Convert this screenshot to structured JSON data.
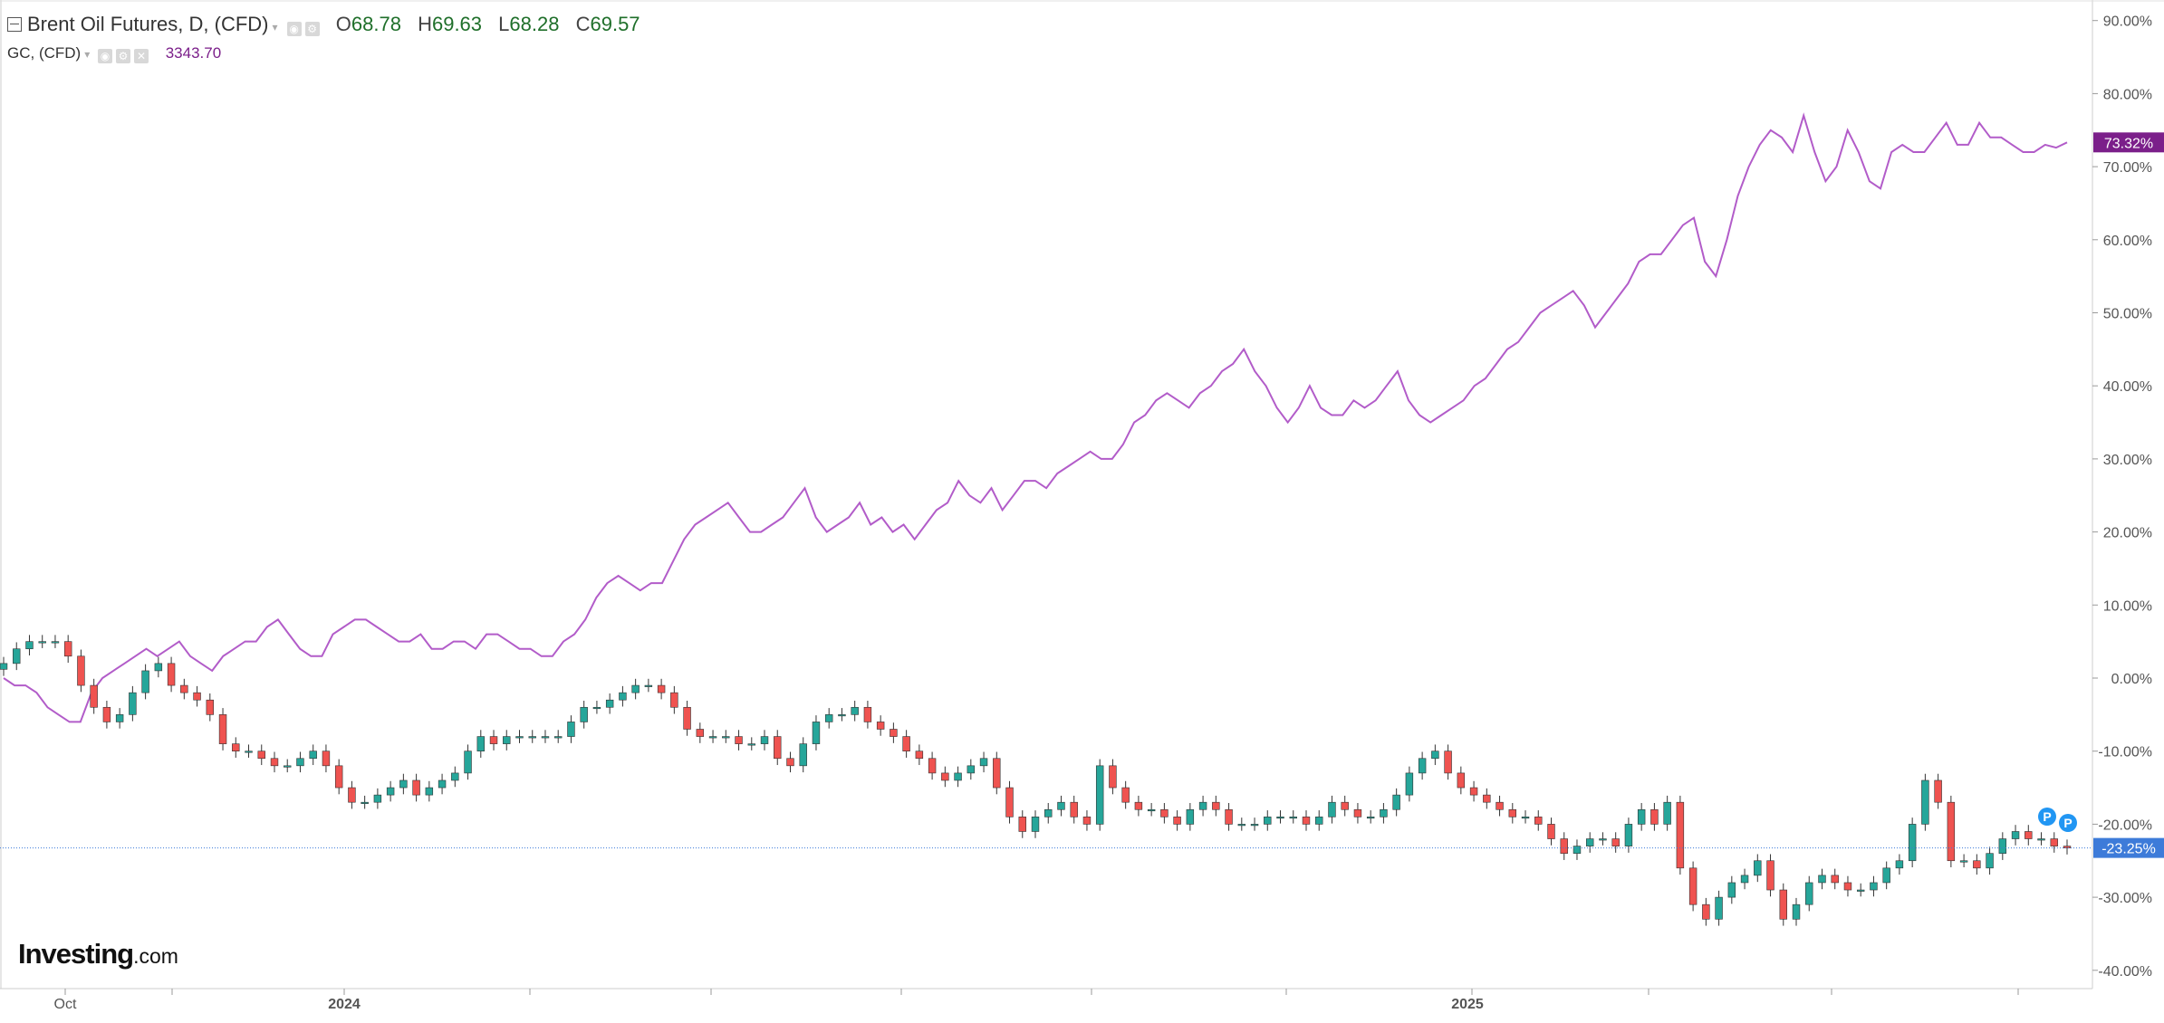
{
  "legend": {
    "title": "Brent Oil Futures, D, (CFD)",
    "o_label": "O",
    "o_value": "68.78",
    "h_label": "H",
    "h_value": "69.63",
    "l_label": "L",
    "l_value": "68.28",
    "c_label": "C",
    "c_value": "69.57",
    "compare_symbol": "GC, (CFD)",
    "compare_value": "3343.70"
  },
  "watermark": {
    "brand": "Investing",
    "suffix": ".com"
  },
  "colors": {
    "up": "#26a69a",
    "down": "#ef5350",
    "gold_line": "#b25cc9",
    "gold_badge": "#7b1f8a",
    "brent_badge": "#3d7bd9",
    "axis": "#cccccc",
    "text": "#555555"
  },
  "chart_data": {
    "type": "line",
    "title": "Brent Oil Futures, D, (CFD)",
    "xlabel": "",
    "ylabel": "",
    "y_format": "percent",
    "ylim": [
      -40,
      90
    ],
    "y_ticks": [
      "90.00%",
      "80.00%",
      "70.00%",
      "60.00%",
      "50.00%",
      "40.00%",
      "30.00%",
      "20.00%",
      "10.00%",
      "0.00%",
      "-10.00%",
      "-20.00%",
      "-30.00%",
      "-40.00%"
    ],
    "x_ticks": [
      "Oct",
      "2024",
      "2025"
    ],
    "grid": false,
    "series": [
      {
        "name": "GC, (CFD)",
        "style": "line",
        "last_label": "73.32%",
        "last_value": 73.32,
        "values": [
          0,
          -1,
          -1,
          -2,
          -4,
          -5,
          -6,
          -6,
          -2,
          0,
          1,
          2,
          3,
          4,
          3,
          4,
          5,
          3,
          2,
          1,
          3,
          4,
          5,
          5,
          7,
          8,
          6,
          4,
          3,
          3,
          6,
          7,
          8,
          8,
          7,
          6,
          5,
          5,
          6,
          4,
          4,
          5,
          5,
          4,
          6,
          6,
          5,
          4,
          4,
          3,
          3,
          5,
          6,
          8,
          11,
          13,
          14,
          13,
          12,
          13,
          13,
          16,
          19,
          21,
          22,
          23,
          24,
          22,
          20,
          20,
          21,
          22,
          24,
          26,
          22,
          20,
          21,
          22,
          24,
          21,
          22,
          20,
          21,
          19,
          21,
          23,
          24,
          27,
          25,
          24,
          26,
          23,
          25,
          27,
          27,
          26,
          28,
          29,
          30,
          31,
          30,
          30,
          32,
          35,
          36,
          38,
          39,
          38,
          37,
          39,
          40,
          42,
          43,
          45,
          42,
          40,
          37,
          35,
          37,
          40,
          37,
          36,
          36,
          38,
          37,
          38,
          40,
          42,
          38,
          36,
          35,
          36,
          37,
          38,
          40,
          41,
          43,
          45,
          46,
          48,
          50,
          51,
          52,
          53,
          51,
          48,
          50,
          52,
          54,
          57,
          58,
          58,
          60,
          62,
          63,
          57,
          55,
          60,
          66,
          70,
          73,
          75,
          74,
          72,
          77,
          72,
          68,
          70,
          75,
          72,
          68,
          67,
          72,
          73,
          72,
          72,
          74,
          76,
          73,
          73,
          76,
          74,
          74,
          73,
          72,
          72,
          73,
          72.6,
          73.32
        ]
      },
      {
        "name": "Brent Oil Futures, D, (CFD)",
        "style": "candlestick",
        "last_label": "-23.25%",
        "last_value": -23.25,
        "closes": [
          2,
          4,
          5,
          5,
          5,
          3,
          -1,
          -4,
          -6,
          -5,
          -2,
          1,
          2,
          -1,
          -2,
          -3,
          -5,
          -9,
          -10,
          -10,
          -11,
          -12,
          -12,
          -11,
          -10,
          -12,
          -15,
          -17,
          -17,
          -16,
          -15,
          -14,
          -16,
          -15,
          -14,
          -13,
          -10,
          -8,
          -9,
          -8,
          -8,
          -8,
          -8,
          -8,
          -6,
          -4,
          -4,
          -3,
          -2,
          -1,
          -1,
          -2,
          -4,
          -7,
          -8,
          -8,
          -8,
          -9,
          -9,
          -8,
          -11,
          -12,
          -9,
          -6,
          -5,
          -5,
          -4,
          -6,
          -7,
          -8,
          -10,
          -11,
          -13,
          -14,
          -13,
          -12,
          -11,
          -15,
          -19,
          -21,
          -19,
          -18,
          -17,
          -19,
          -20,
          -12,
          -15,
          -17,
          -18,
          -18,
          -19,
          -20,
          -18,
          -17,
          -18,
          -20,
          -20,
          -20,
          -19,
          -19,
          -19,
          -20,
          -19,
          -17,
          -18,
          -19,
          -19,
          -18,
          -16,
          -13,
          -11,
          -10,
          -13,
          -15,
          -16,
          -17,
          -18,
          -19,
          -19,
          -20,
          -22,
          -24,
          -23,
          -22,
          -22,
          -23,
          -20,
          -18,
          -20,
          -17,
          -26,
          -31,
          -33,
          -30,
          -28,
          -27,
          -25,
          -29,
          -33,
          -31,
          -28,
          -27,
          -28,
          -29,
          -29,
          -28,
          -26,
          -25,
          -20,
          -14,
          -17,
          -25,
          -25,
          -26,
          -24,
          -22,
          -21,
          -22,
          -22,
          -23,
          -23.25
        ]
      }
    ]
  }
}
